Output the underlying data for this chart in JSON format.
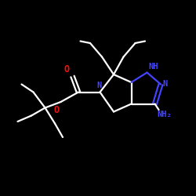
{
  "background_color": "#000000",
  "bond_color": "#ffffff",
  "nitrogen_color": "#4444ff",
  "oxygen_color": "#ee1111",
  "label_NH": "NH",
  "label_N_pyrazole": "N",
  "label_N_boc": "N",
  "label_O_top": "O",
  "label_O_bot": "O",
  "label_NH2": "NH₂",
  "figsize": [
    2.5,
    2.5
  ],
  "dpi": 100
}
